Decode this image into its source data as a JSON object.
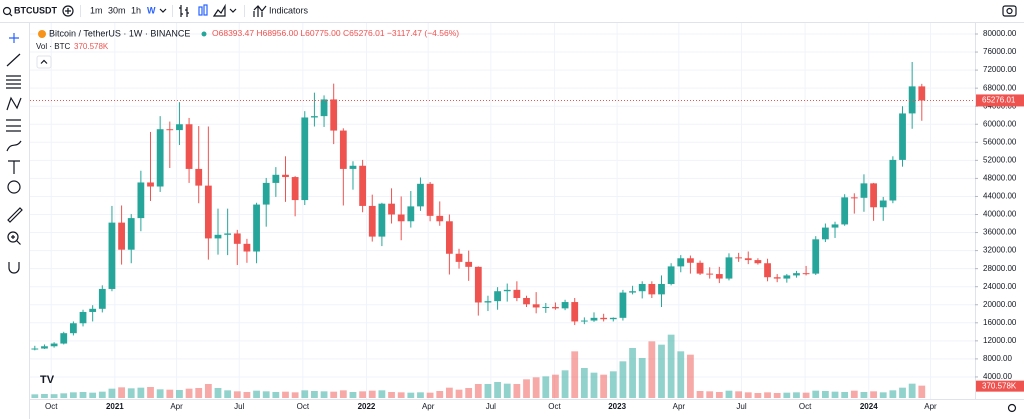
{
  "toolbar": {
    "symbol": "BTCUSDT",
    "intervals": [
      "1m",
      "30m",
      "1h",
      "W"
    ],
    "indicators": "Indicators"
  },
  "chart_data": {
    "type": "candlestick",
    "title": "Bitcoin / TetherUS · 1W · BINANCE",
    "ohlc_labels": [
      "O68393.47",
      "H68956.00",
      "L60775.00",
      "C65276.01",
      "−3117.47 (−4.56%)"
    ],
    "volume_title": "Vol · BTC",
    "volume_label": "370.578K",
    "last_price_label": "65276.01",
    "up_color": "#26a69a",
    "down_color": "#ef5350",
    "open": [
      10200,
      10300,
      10800,
      11400,
      13700,
      15900,
      18400,
      19100,
      23500,
      38200,
      32200,
      39200,
      47100,
      46200,
      58900,
      58700,
      60000,
      50100,
      46400,
      34700,
      35500,
      35800,
      33500,
      31800,
      42200,
      47000,
      48800,
      48300,
      43200,
      61500,
      61800,
      65500,
      58600,
      50100,
      50800,
      41900,
      35100,
      42400,
      40000,
      38500,
      41800,
      46800,
      39700,
      38500,
      31300,
      29500,
      28400,
      20500,
      20800,
      23000,
      23300,
      21500,
      20100,
      19400,
      19500,
      19200,
      20600,
      16300,
      16500,
      17100,
      16800,
      17100,
      22700,
      23000,
      24600,
      22300,
      24600,
      28500,
      30300,
      29300,
      26900,
      26800,
      25800,
      30500,
      30300,
      29900,
      29200,
      26100,
      25800,
      26500,
      27000,
      26900,
      34500,
      37100,
      37800,
      43800,
      43700,
      46900,
      41600,
      43100,
      52100,
      62400,
      68393.47
    ],
    "high": [
      10900,
      11200,
      11700,
      14000,
      16300,
      18900,
      19900,
      24300,
      41900,
      42000,
      40100,
      49700,
      58300,
      61800,
      60600,
      64900,
      61400,
      59600,
      59500,
      41300,
      41300,
      36600,
      34600,
      42600,
      48100,
      50500,
      52900,
      48500,
      62900,
      67000,
      66400,
      69000,
      59100,
      51800,
      52100,
      44400,
      42600,
      45800,
      44000,
      45200,
      48200,
      47200,
      42900,
      40000,
      32400,
      32000,
      28500,
      22000,
      23900,
      24700,
      25200,
      22000,
      22800,
      20400,
      20500,
      21100,
      21500,
      17200,
      18300,
      18000,
      17200,
      23300,
      24200,
      25200,
      25200,
      26500,
      29200,
      31000,
      30900,
      29800,
      28300,
      28400,
      31400,
      31500,
      31800,
      30300,
      30200,
      26800,
      26800,
      27500,
      28600,
      35200,
      38000,
      38400,
      44500,
      44700,
      48900,
      47000,
      43900,
      52900,
      64000,
      73800,
      68956
    ],
    "low": [
      9900,
      10200,
      10500,
      11200,
      13200,
      15200,
      16300,
      18300,
      23000,
      28900,
      29200,
      36300,
      43000,
      45000,
      50300,
      55400,
      47000,
      42500,
      30000,
      31100,
      31000,
      28800,
      29300,
      29200,
      37300,
      43900,
      42800,
      39600,
      42100,
      59500,
      59400,
      55600,
      42000,
      45500,
      40500,
      34000,
      33000,
      38000,
      34300,
      37100,
      40800,
      38500,
      37500,
      26700,
      28000,
      25300,
      17600,
      18600,
      18900,
      20700,
      20800,
      19500,
      18100,
      18200,
      18900,
      18800,
      15500,
      15700,
      16200,
      16300,
      16300,
      16500,
      22300,
      21400,
      21500,
      19500,
      24300,
      27200,
      26900,
      26600,
      25800,
      24800,
      25400,
      29500,
      29000,
      28900,
      25200,
      25000,
      24900,
      26000,
      26500,
      26600,
      33900,
      34800,
      37500,
      40200,
      40600,
      38600,
      38600,
      42500,
      50600,
      59000,
      60775
    ],
    "close": [
      10300,
      10800,
      11400,
      13700,
      15900,
      18400,
      19100,
      23500,
      38200,
      32200,
      39200,
      47100,
      46200,
      58900,
      58700,
      60000,
      50100,
      46400,
      34700,
      35500,
      35800,
      33500,
      31800,
      42200,
      47000,
      48800,
      48300,
      43200,
      61500,
      61800,
      65500,
      58600,
      50100,
      50800,
      41900,
      35100,
      42400,
      40000,
      38500,
      41800,
      46800,
      39700,
      38500,
      31300,
      29500,
      28400,
      20500,
      20800,
      23000,
      23300,
      21500,
      20100,
      19400,
      19500,
      19200,
      20600,
      16300,
      16500,
      17100,
      16800,
      17100,
      22700,
      23000,
      24600,
      22300,
      24600,
      28500,
      30300,
      29300,
      26900,
      26800,
      25800,
      30500,
      30300,
      29900,
      29200,
      26100,
      25800,
      26500,
      27000,
      26900,
      34500,
      37100,
      37800,
      43800,
      43700,
      46900,
      41600,
      43100,
      52100,
      62400,
      68393.47,
      65276.01
    ],
    "volume": [
      110000,
      120000,
      115000,
      140000,
      170000,
      180000,
      160000,
      190000,
      280000,
      320000,
      290000,
      310000,
      330000,
      260000,
      250000,
      240000,
      280000,
      300000,
      420000,
      300000,
      230000,
      200000,
      180000,
      220000,
      200000,
      180000,
      190000,
      170000,
      230000,
      210000,
      200000,
      190000,
      230000,
      180000,
      200000,
      220000,
      230000,
      180000,
      170000,
      160000,
      170000,
      160000,
      210000,
      310000,
      250000,
      300000,
      420000,
      420000,
      480000,
      430000,
      420000,
      560000,
      620000,
      650000,
      700000,
      830000,
      1400000,
      900000,
      760000,
      700000,
      800000,
      1100000,
      1500000,
      1200000,
      1700000,
      1600000,
      1900000,
      1400000,
      1300000,
      210000,
      200000,
      180000,
      220000,
      200000,
      170000,
      150000,
      170000,
      150000,
      160000,
      170000,
      160000,
      220000,
      210000,
      190000,
      180000,
      220000,
      180000,
      200000,
      170000,
      230000,
      310000,
      430000,
      370578
    ],
    "vlim": [
      0,
      2400000
    ],
    "xlim": [
      -0.5,
      97
    ],
    "xticks": [
      {
        "value": 1.7,
        "label": "Oct"
      },
      {
        "value": 8.3,
        "label": "2021"
      },
      {
        "value": 14.7,
        "label": "Apr"
      },
      {
        "value": 21.2,
        "label": "Jul"
      },
      {
        "value": 27.8,
        "label": "Oct"
      },
      {
        "value": 34.4,
        "label": "2022"
      },
      {
        "value": 40.8,
        "label": "Apr"
      },
      {
        "value": 47.3,
        "label": "Jul"
      },
      {
        "value": 53.9,
        "label": "Oct"
      },
      {
        "value": 60.4,
        "label": "2023"
      },
      {
        "value": 66.8,
        "label": "Apr"
      },
      {
        "value": 73.3,
        "label": "Jul"
      },
      {
        "value": 79.9,
        "label": "Oct"
      },
      {
        "value": 86.5,
        "label": "2024"
      },
      {
        "value": 92.9,
        "label": "Apr"
      }
    ],
    "ylim": [
      0,
      80000
    ],
    "yticks": [
      {
        "value": 4000,
        "label": "4000.00"
      },
      {
        "value": 8000,
        "label": "8000.00"
      },
      {
        "value": 12000,
        "label": "12000.00"
      },
      {
        "value": 16000,
        "label": "16000.00"
      },
      {
        "value": 20000,
        "label": "20000.00"
      },
      {
        "value": 24000,
        "label": "24000.00"
      },
      {
        "value": 28000,
        "label": "28000.00"
      },
      {
        "value": 32000,
        "label": "32000.00"
      },
      {
        "value": 36000,
        "label": "36000.00"
      },
      {
        "value": 40000,
        "label": "40000.00"
      },
      {
        "value": 44000,
        "label": "44000.00"
      },
      {
        "value": 48000,
        "label": "48000.00"
      },
      {
        "value": 52000,
        "label": "52000.00"
      },
      {
        "value": 56000,
        "label": "56000.00"
      },
      {
        "value": 60000,
        "label": "60000.00"
      },
      {
        "value": 64000,
        "label": "64000.00"
      },
      {
        "value": 68000,
        "label": "68000.00"
      },
      {
        "value": 72000,
        "label": "72000.00"
      },
      {
        "value": 76000,
        "label": "76000.00"
      },
      {
        "value": 80000,
        "label": "80000.00"
      }
    ]
  }
}
